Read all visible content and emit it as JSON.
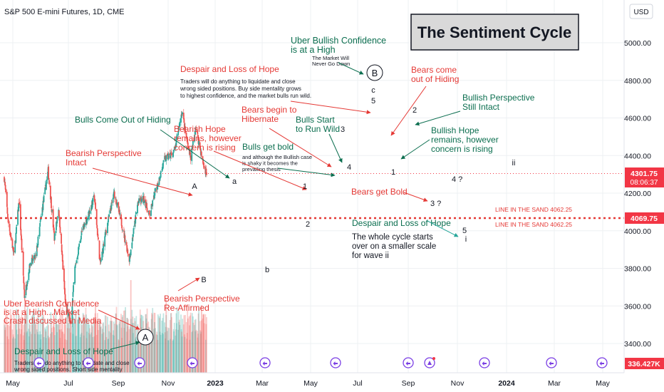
{
  "header": {
    "symbol_title": "S&P 500 E-mini Futures, 1D, CME",
    "currency": "USD"
  },
  "title_box": {
    "text": "The Sentiment Cycle"
  },
  "colors": {
    "up": "#26a69a",
    "down": "#ef5350",
    "annot_green": "#0b6e4f",
    "annot_red": "#e53935",
    "price_badge": "#f23645",
    "grid": "#eef0f3",
    "axis_text": "#131722"
  },
  "price_axis": {
    "ticks": [
      "5000.00",
      "4800.00",
      "4600.00",
      "4400.00",
      "4200.00",
      "4000.00",
      "3800.00",
      "3600.00",
      "3400.00"
    ],
    "current_price": "4301.75",
    "countdown": "08:06:37",
    "line_price": "4069.75",
    "volume_value": "336.427K"
  },
  "time_axis": {
    "labels": [
      "May",
      "Jul",
      "Sep",
      "Nov",
      "2023",
      "Mar",
      "May",
      "Jul",
      "Sep",
      "Nov",
      "2024",
      "Mar",
      "May"
    ]
  },
  "line_in_sand": {
    "label_top": "LINE IN THE SAND 4062.25",
    "label_bottom": "LINE IN THE SAND 4062.25"
  },
  "wave_labels": {
    "A_circle": "A",
    "B_circle": "B",
    "A": "A",
    "B": "B",
    "a": "a",
    "b": "b",
    "c": "c",
    "n1": "1",
    "n2": "2",
    "n3": "3",
    "n4": "4",
    "n5": "5",
    "n1b": "1",
    "n2b": "2",
    "n4q": "4 ?",
    "n3q": "3 ?",
    "n5c": "5",
    "i": "i",
    "ii": "ii"
  },
  "annotations": {
    "uber_bullish": {
      "title": "Uber Bullish Confidence\nis at a High",
      "sub": "The Market Will\nNever Go Down"
    },
    "despair_top": {
      "title": "Despair and Loss of Hope",
      "sub": "Traders will do anything to liquidate and close\nwrong sided positions.  Buy side mentality grows\nto highest confidence, and the market bulls run wild."
    },
    "bears_come_out": "Bears come\nout of Hiding",
    "bullish_perspective": "Bullish Perspective\nStill Intact",
    "bullish_hope": "Bullish Hope\nremains, however\nconcern is rising",
    "bulls_come_out": "Bulls Come Out of Hiding",
    "bears_hibernate": "Bears begin to\nHibernate",
    "bulls_start_run": "Bulls Start\nto Run Wild",
    "bearish_hope": "Bearish Hope\nremains, however\nconcern is rising",
    "bulls_get_bold": {
      "title": "Bulls get bold",
      "sub": "and although the Bullish case\nis shaky it becomes the\nprevailing thesis"
    },
    "bearish_perspective_intact": "Bearish Perspective\nIntact",
    "bears_get_bold": "Bears get Bold",
    "despair_right": {
      "title": "Despair and Loss of Hope",
      "sub": "The whole cycle starts\nover on a smaller scale\nfor wave ii"
    },
    "bearish_reaffirmed": "Bearish Perspective\nRe-Affirmed",
    "uber_bearish": "Uber Bearish Confidence\nis at a High...Market\nCrash discussed in Media",
    "despair_bottom": {
      "title": "Despair and Loss of Hope",
      "sub": "Traders will do anything to liquidate and close\nwrong sided positions.  Short side mentality"
    }
  },
  "chart_data": {
    "type": "candlestick",
    "title": "S&P 500 E-mini Futures, 1D, CME",
    "ylim": [
      3350,
      5100
    ],
    "y_ticks": [
      3400,
      3600,
      3800,
      4000,
      4200,
      4400,
      4600,
      4800,
      5000
    ],
    "x_labels": [
      "May",
      "Jul",
      "Sep",
      "Nov",
      "2023",
      "Mar",
      "May",
      "Jul",
      "Sep",
      "Nov",
      "2024",
      "Mar",
      "May"
    ],
    "price_path": [
      [
        "2022-04-25",
        4280
      ],
      [
        "2022-05-05",
        4050
      ],
      [
        "2022-05-20",
        3870
      ],
      [
        "2022-06-02",
        4160
      ],
      [
        "2022-06-16",
        3650
      ],
      [
        "2022-07-01",
        3830
      ],
      [
        "2022-07-15",
        3860
      ],
      [
        "2022-08-01",
        4120
      ],
      [
        "2022-08-16",
        4320
      ],
      [
        "2022-09-01",
        3960
      ],
      [
        "2022-09-12",
        4120
      ],
      [
        "2022-09-30",
        3600
      ],
      [
        "2022-10-13",
        3500
      ],
      [
        "2022-10-24",
        3800
      ],
      [
        "2022-11-10",
        3990
      ],
      [
        "2022-11-30",
        4100
      ],
      [
        "2022-12-13",
        4180
      ],
      [
        "2022-12-28",
        3820
      ],
      [
        "2023-01-12",
        4000
      ],
      [
        "2023-02-02",
        4200
      ],
      [
        "2023-02-20",
        4050
      ],
      [
        "2023-03-13",
        3850
      ],
      [
        "2023-04-04",
        4150
      ],
      [
        "2023-04-20",
        4170
      ],
      [
        "2023-05-04",
        4080
      ],
      [
        "2023-05-18",
        4200
      ],
      [
        "2023-06-12",
        4380
      ],
      [
        "2023-06-26",
        4400
      ],
      [
        "2023-07-07",
        4420
      ],
      [
        "2023-07-27",
        4640
      ],
      [
        "2023-08-04",
        4520
      ],
      [
        "2023-08-18",
        4390
      ],
      [
        "2023-08-31",
        4550
      ],
      [
        "2023-09-21",
        4340
      ],
      [
        "2023-09-29",
        4301.75
      ]
    ],
    "current_price": 4301.75,
    "line_in_the_sand": 4062.25,
    "volume_last": "336.427K",
    "series": [
      {
        "name": "S&P 500 E-mini Futures",
        "values": []
      }
    ],
    "projection": [
      {
        "label": "4 ?",
        "date": "2023-10-17",
        "price": 4290
      },
      {
        "label": "3 ?",
        "date": "2023-10-17",
        "price": 4140
      },
      {
        "label": "5",
        "date": "2023-11-01",
        "price": 4010
      },
      {
        "label": "ii",
        "date": "2023-12-20",
        "price": 4370
      }
    ],
    "grid": true,
    "legend": "none"
  }
}
